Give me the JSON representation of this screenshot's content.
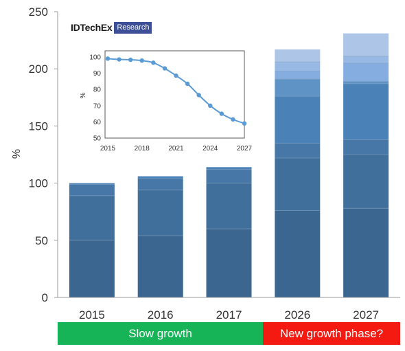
{
  "brand": {
    "name": "IDTechEx",
    "tag": "Research"
  },
  "phases": {
    "slow": "Slow growth",
    "new": "New growth phase?"
  },
  "chart_data": [
    {
      "type": "bar",
      "stacked": true,
      "title": "",
      "ylabel": "%",
      "xlabel": "",
      "ylim": [
        0,
        250
      ],
      "yticks": [
        0,
        50,
        100,
        150,
        200,
        250
      ],
      "grid": false,
      "legend": "none",
      "categories": [
        "2015",
        "2016",
        "2017",
        "2026",
        "2027"
      ],
      "totals": [
        100,
        106,
        114,
        217,
        231
      ],
      "series": [
        {
          "values": [
            50,
            54,
            60,
            76,
            78
          ],
          "color": "#3b6690"
        },
        {
          "values": [
            39,
            40,
            40,
            46,
            47
          ],
          "color": "#416f9b"
        },
        {
          "values": [
            10,
            10,
            12,
            13,
            13
          ],
          "color": "#4677a6"
        },
        {
          "values": [
            1,
            2,
            2,
            41,
            49
          ],
          "color": "#4a82b8"
        },
        {
          "values": [
            0,
            0,
            0,
            15,
            2
          ],
          "color": "#5f93c6"
        },
        {
          "values": [
            0,
            0,
            0,
            7,
            16
          ],
          "color": "#86ade0"
        },
        {
          "values": [
            0,
            0,
            0,
            8,
            6
          ],
          "color": "#98b9e3"
        },
        {
          "values": [
            0,
            0,
            0,
            11,
            20
          ],
          "color": "#adc5e7"
        }
      ]
    },
    {
      "type": "line",
      "title": "",
      "ylabel": "%",
      "xlabel": "",
      "xlim": [
        2015,
        2027
      ],
      "ylim": [
        50,
        100
      ],
      "xticks": [
        2015,
        2018,
        2021,
        2024,
        2027
      ],
      "yticks": [
        50,
        60,
        70,
        80,
        90,
        100
      ],
      "grid": false,
      "x": [
        2015,
        2016,
        2017,
        2018,
        2019,
        2020,
        2021,
        2022,
        2023,
        2024,
        2025,
        2026,
        2027
      ],
      "values": [
        99,
        98.5,
        98.3,
        97.8,
        96.5,
        93,
        88.5,
        83.5,
        76.5,
        70,
        65,
        61.5,
        59
      ],
      "color": "#5b9bd5"
    }
  ]
}
